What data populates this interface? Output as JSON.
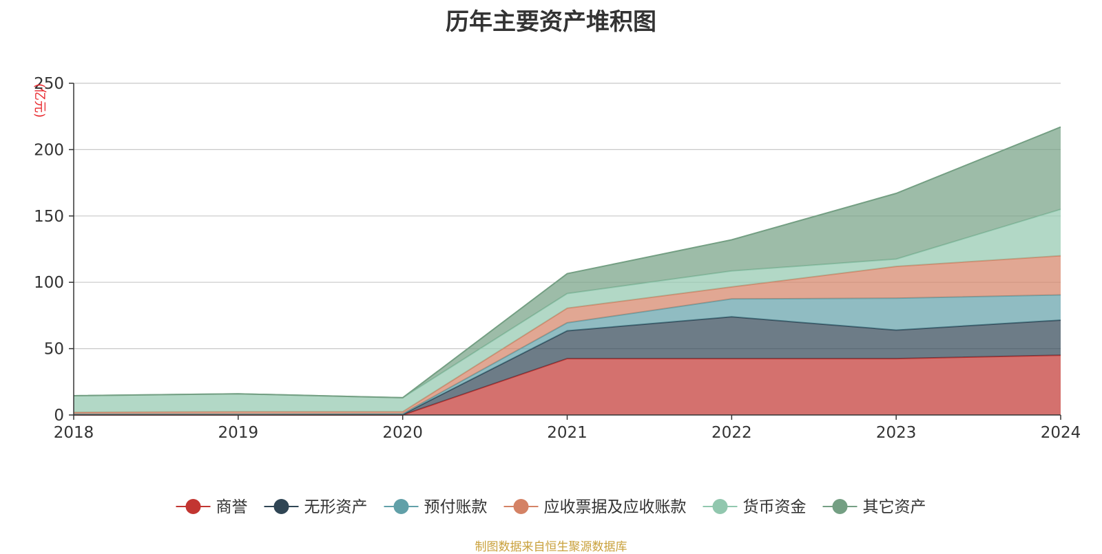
{
  "chart_data": {
    "type": "area",
    "stacked": true,
    "title": "历年主要资产堆积图",
    "ylabel": "(亿元)",
    "x": [
      "2018",
      "2019",
      "2020",
      "2021",
      "2022",
      "2023",
      "2024"
    ],
    "ylim": [
      0,
      250
    ],
    "yticks": [
      0,
      50,
      100,
      150,
      200,
      250
    ],
    "grid": true,
    "legend_position": "bottom",
    "series": [
      {
        "name": "商誉",
        "color": "#c23531",
        "values": [
          0.0,
          0.0,
          0.0,
          42.5,
          42.5,
          42.5,
          45.0
        ]
      },
      {
        "name": "无形资产",
        "color": "#2f4554",
        "values": [
          0.5,
          0.5,
          0.5,
          21.0,
          31.5,
          21.5,
          26.5
        ]
      },
      {
        "name": "预付账款",
        "color": "#61a0a8",
        "values": [
          0.3,
          0.3,
          0.5,
          6.0,
          13.5,
          24.0,
          19.0
        ]
      },
      {
        "name": "应收票据及应收账款",
        "color": "#d48265",
        "values": [
          1.2,
          1.7,
          1.5,
          11.0,
          9.0,
          24.0,
          29.5
        ]
      },
      {
        "name": "货币资金",
        "color": "#91c7ae",
        "values": [
          12.5,
          13.5,
          10.5,
          11.0,
          12.0,
          5.5,
          35.0
        ]
      },
      {
        "name": "其它资产",
        "color": "#749f83",
        "values": [
          0.0,
          0.0,
          0.0,
          15.0,
          23.5,
          49.5,
          62.0
        ]
      }
    ]
  },
  "source_note": "制图数据来自恒生聚源数据库"
}
